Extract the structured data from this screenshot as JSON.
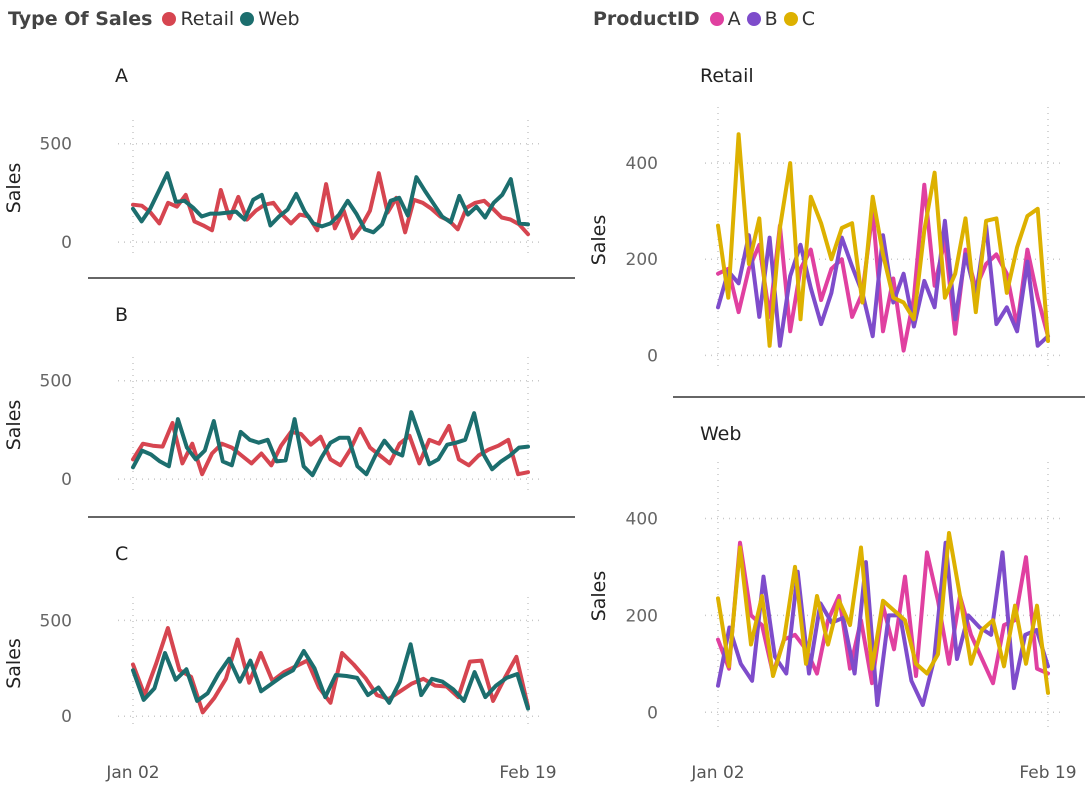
{
  "legend_left": {
    "title": "Type Of Sales",
    "items": [
      {
        "label": "Retail",
        "color": "#D64550"
      },
      {
        "label": "Web",
        "color": "#1C6E6E"
      }
    ]
  },
  "legend_right": {
    "title": "ProductID",
    "items": [
      {
        "label": "A",
        "color": "#E040A0"
      },
      {
        "label": "B",
        "color": "#7E4CCB"
      },
      {
        "label": "C",
        "color": "#DDB100"
      }
    ]
  },
  "chart_data": [
    {
      "type": "line",
      "title": "A",
      "ylabel": "Sales",
      "ylim": [
        -30,
        580
      ],
      "yticks": [
        0,
        500
      ],
      "xticks": [
        "Jan 02",
        "Feb 19"
      ],
      "grid": true,
      "series": [
        {
          "name": "Retail",
          "color": "#D64550",
          "values": [
            190,
            185,
            150,
            95,
            200,
            180,
            240,
            105,
            85,
            60,
            265,
            120,
            230,
            115,
            160,
            190,
            200,
            140,
            95,
            140,
            130,
            60,
            295,
            70,
            160,
            20,
            80,
            160,
            350,
            150,
            225,
            50,
            215,
            200,
            170,
            130,
            110,
            65,
            175,
            200,
            210,
            170,
            125,
            115,
            90,
            40
          ]
        },
        {
          "name": "Web",
          "color": "#1C6E6E",
          "values": [
            170,
            105,
            170,
            260,
            350,
            205,
            210,
            175,
            130,
            145,
            145,
            150,
            155,
            115,
            215,
            240,
            85,
            130,
            165,
            245,
            155,
            95,
            80,
            95,
            140,
            210,
            145,
            65,
            50,
            90,
            210,
            225,
            135,
            330,
            260,
            195,
            130,
            100,
            235,
            140,
            180,
            125,
            200,
            240,
            320,
            95,
            90
          ]
        }
      ]
    },
    {
      "type": "line",
      "title": "B",
      "ylabel": "Sales",
      "ylim": [
        -30,
        580
      ],
      "yticks": [
        0,
        500
      ],
      "xticks": [
        "Jan 02",
        "Feb 19"
      ],
      "grid": true,
      "series": [
        {
          "name": "Retail",
          "color": "#D64550",
          "values": [
            100,
            180,
            170,
            165,
            285,
            80,
            180,
            25,
            130,
            180,
            160,
            120,
            80,
            130,
            70,
            170,
            240,
            230,
            175,
            215,
            100,
            70,
            150,
            255,
            160,
            120,
            80,
            180,
            220,
            80,
            200,
            180,
            270,
            100,
            70,
            120,
            150,
            170,
            200,
            25,
            35
          ]
        },
        {
          "name": "Web",
          "color": "#1C6E6E",
          "values": [
            60,
            145,
            125,
            90,
            65,
            305,
            160,
            100,
            145,
            295,
            90,
            70,
            240,
            200,
            185,
            200,
            90,
            95,
            305,
            65,
            20,
            110,
            185,
            210,
            210,
            65,
            25,
            120,
            195,
            140,
            120,
            340,
            210,
            75,
            100,
            175,
            185,
            200,
            335,
            130,
            50,
            90,
            120,
            160,
            165
          ]
        }
      ]
    },
    {
      "type": "line",
      "title": "C",
      "ylabel": "Sales",
      "ylim": [
        -30,
        580
      ],
      "yticks": [
        0,
        500
      ],
      "xticks": [
        "Jan 02",
        "Feb 19"
      ],
      "grid": true,
      "series": [
        {
          "name": "Retail",
          "color": "#D64550",
          "values": [
            270,
            110,
            275,
            460,
            240,
            205,
            20,
            95,
            195,
            400,
            175,
            330,
            185,
            230,
            260,
            290,
            150,
            70,
            330,
            270,
            200,
            110,
            90,
            130,
            170,
            195,
            160,
            155,
            100,
            285,
            290,
            80,
            200,
            310,
            50
          ]
        },
        {
          "name": "Web",
          "color": "#1C6E6E",
          "values": [
            240,
            85,
            145,
            330,
            190,
            245,
            80,
            120,
            220,
            300,
            180,
            290,
            130,
            170,
            210,
            240,
            340,
            250,
            100,
            215,
            210,
            200,
            110,
            150,
            70,
            180,
            375,
            110,
            195,
            180,
            140,
            80,
            230,
            100,
            160,
            200,
            220,
            40
          ]
        }
      ]
    },
    {
      "type": "line",
      "title": "Retail",
      "ylabel": "Sales",
      "ylim": [
        -20,
        500
      ],
      "yticks": [
        0,
        200,
        400
      ],
      "xticks": [
        "Jan 02",
        "Feb 19"
      ],
      "grid": true,
      "series": [
        {
          "name": "A",
          "color": "#E040A0",
          "values": [
            170,
            180,
            90,
            180,
            230,
            80,
            270,
            50,
            180,
            220,
            115,
            180,
            200,
            80,
            130,
            300,
            50,
            160,
            10,
            120,
            355,
            145,
            240,
            45,
            220,
            140,
            190,
            210,
            170,
            60,
            220,
            120,
            40
          ]
        },
        {
          "name": "B",
          "color": "#7E4CCB",
          "values": [
            100,
            175,
            150,
            250,
            80,
            245,
            20,
            165,
            230,
            140,
            65,
            130,
            245,
            185,
            130,
            40,
            250,
            110,
            170,
            60,
            155,
            100,
            280,
            75,
            210,
            125,
            270,
            65,
            100,
            50,
            195,
            20,
            40
          ]
        },
        {
          "name": "C",
          "color": "#DDB100",
          "values": [
            270,
            120,
            460,
            190,
            285,
            20,
            265,
            400,
            75,
            330,
            275,
            200,
            265,
            275,
            110,
            330,
            210,
            120,
            110,
            75,
            260,
            380,
            120,
            170,
            285,
            90,
            280,
            285,
            130,
            225,
            290,
            305,
            30
          ]
        }
      ]
    },
    {
      "type": "line",
      "title": "Web",
      "ylabel": "Sales",
      "ylim": [
        -20,
        500
      ],
      "yticks": [
        0,
        200,
        400
      ],
      "xticks": [
        "Jan 02",
        "Feb 19"
      ],
      "grid": true,
      "series": [
        {
          "name": "A",
          "color": "#E040A0",
          "values": [
            150,
            90,
            350,
            200,
            180,
            80,
            150,
            160,
            130,
            80,
            190,
            240,
            90,
            190,
            60,
            220,
            130,
            280,
            75,
            330,
            230,
            100,
            240,
            160,
            110,
            60,
            180,
            190,
            320,
            90,
            80
          ]
        },
        {
          "name": "B",
          "color": "#7E4CCB",
          "values": [
            55,
            175,
            100,
            65,
            280,
            115,
            80,
            290,
            80,
            225,
            185,
            195,
            80,
            310,
            15,
            200,
            200,
            65,
            15,
            110,
            350,
            110,
            200,
            175,
            160,
            330,
            50,
            160,
            170,
            95
          ]
        },
        {
          "name": "C",
          "color": "#DDB100",
          "values": [
            235,
            95,
            340,
            140,
            240,
            75,
            150,
            300,
            100,
            240,
            140,
            230,
            180,
            340,
            90,
            230,
            210,
            190,
            100,
            80,
            120,
            370,
            240,
            100,
            170,
            190,
            95,
            220,
            100,
            220,
            40
          ]
        }
      ]
    }
  ]
}
